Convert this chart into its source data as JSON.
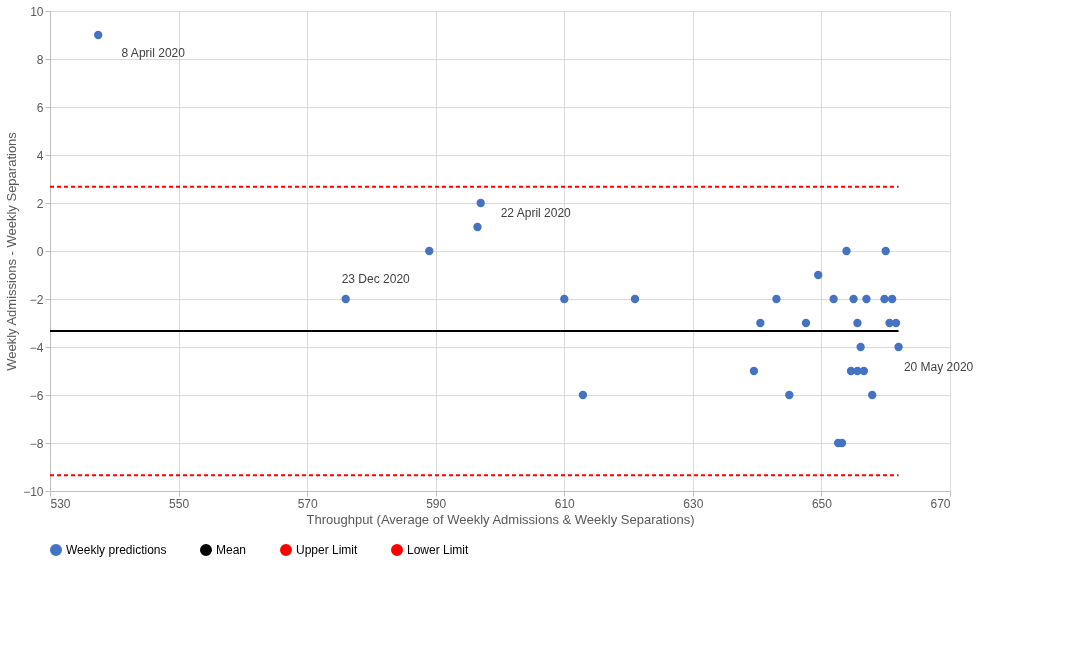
{
  "chart_data": {
    "type": "scatter",
    "xlabel": "Throughput (Average of Weekly Admissions & Weekly Separations)",
    "ylabel": "Weekly Admissions - Weekly Separations",
    "xlim": [
      530,
      670
    ],
    "xticks": [
      530,
      550,
      570,
      590,
      610,
      630,
      650,
      670
    ],
    "ylim": [
      -10,
      10
    ],
    "yticks": [
      -10,
      -8,
      -6,
      -4,
      -2,
      0,
      2,
      4,
      6,
      8,
      10
    ],
    "grid": true,
    "legend": "bottom",
    "series": [
      {
        "name": "Weekly predictions",
        "color": "#4472c4",
        "type": "scatter",
        "marker": "circle",
        "x": [
          537.5,
          576.0,
          589.0,
          596.5,
          597.0,
          610.0,
          612.9,
          621.0,
          639.5,
          640.5,
          643.0,
          645.0,
          647.6,
          649.5,
          651.9,
          652.6,
          653.2,
          653.9,
          654.6,
          655.0,
          655.6,
          655.6,
          656.1,
          656.6,
          657.0,
          657.9,
          659.8,
          660.0,
          660.6,
          661.0,
          661.6,
          662.0
        ],
        "values": [
          9,
          -2,
          0,
          1,
          2,
          -2,
          -6,
          -2,
          -5,
          -3,
          -2,
          -6,
          -3,
          -1,
          -2,
          -8,
          -8,
          0,
          -5,
          -2,
          -3,
          -5,
          -4,
          -5,
          -2,
          -6,
          -2,
          0,
          -3,
          -2,
          -3,
          -4
        ]
      },
      {
        "name": "Mean",
        "color": "#000000",
        "type": "line",
        "marker": "none",
        "line_style": "solid",
        "x": [
          530,
          662
        ],
        "values": [
          -3.33,
          -3.33
        ]
      },
      {
        "name": "Upper Limit",
        "color": "#ff0000",
        "type": "line",
        "marker": "none",
        "line_style": "dashed",
        "x": [
          530,
          662
        ],
        "values": [
          2.68,
          2.68
        ]
      },
      {
        "name": "Lower Limit",
        "color": "#ff0000",
        "type": "line",
        "marker": "none",
        "line_style": "dashed",
        "x": [
          530,
          662
        ],
        "values": [
          -9.34,
          -9.34
        ]
      }
    ],
    "annotations": [
      {
        "text": "8 April 2020",
        "x": 537.5,
        "y": 9
      },
      {
        "text": "22 April 2020",
        "x": 597.0,
        "y": 2
      },
      {
        "text": "23 Dec 2020",
        "x": 576.0,
        "y": -2
      },
      {
        "text": "20 May 2020",
        "x": 662.0,
        "y": -4
      }
    ]
  }
}
